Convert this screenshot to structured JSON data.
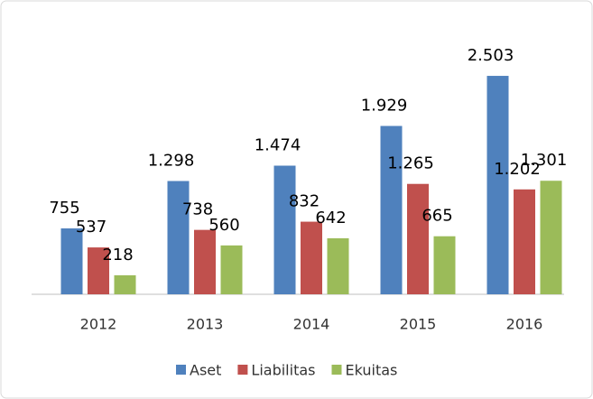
{
  "chart_data": {
    "type": "bar",
    "categories": [
      "2012",
      "2013",
      "2014",
      "2015",
      "2016"
    ],
    "series": [
      {
        "name": "Aset",
        "color": "#4f81bd",
        "values": [
          755,
          1298,
          1474,
          1929,
          2503
        ],
        "value_labels": [
          "755",
          "1.298",
          "1.474",
          "1.929",
          "2.503"
        ]
      },
      {
        "name": "Liabilitas",
        "color": "#c0504d",
        "values": [
          537,
          738,
          832,
          1265,
          1202
        ],
        "value_labels": [
          "537",
          "738",
          "832",
          "1.265",
          "1.202"
        ]
      },
      {
        "name": "Ekuitas",
        "color": "#9bbb59",
        "values": [
          218,
          560,
          642,
          665,
          1301
        ],
        "value_labels": [
          "218",
          "560",
          "642",
          "665",
          "1.301"
        ]
      }
    ],
    "ylim": [
      0,
      3000
    ],
    "legend": "bottom"
  }
}
